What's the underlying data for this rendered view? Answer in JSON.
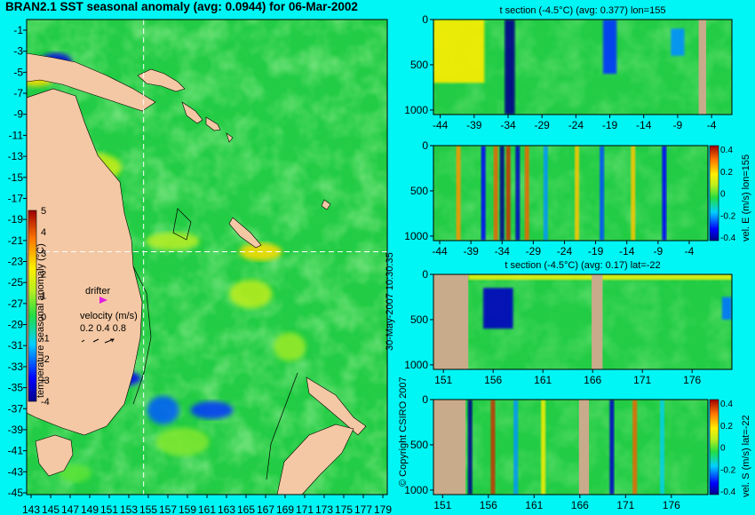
{
  "title": "BRAN2.1 SST seasonal anomaly (avg: 0.0944) for 06-Mar-2002",
  "copyright": "© Copyright CSIRO 2007",
  "generated": "30-May-2007 10:30:35",
  "colors": {
    "background": "#00f5f5",
    "land": "#f4c8a4",
    "section_land": "#c8ab8a",
    "crosshair": "#ffffff",
    "drifter_marker": "#e020e0",
    "ocean_mean": "#22cc44"
  },
  "chart_data": [
    {
      "id": "map",
      "type": "heatmap",
      "title": "BRAN2.1 SST seasonal anomaly (avg: 0.0944) for 06-Mar-2002",
      "x_ticks": [
        "143",
        "145",
        "147",
        "149",
        "151",
        "153",
        "155",
        "157",
        "159",
        "161",
        "163",
        "165",
        "167",
        "169",
        "171",
        "173",
        "175",
        "177",
        "179"
      ],
      "y_ticks": [
        "-1",
        "-3",
        "-5",
        "-7",
        "-9",
        "-11",
        "-13",
        "-15",
        "-17",
        "-19",
        "-21",
        "-23",
        "-25",
        "-27",
        "-29",
        "-31",
        "-33",
        "-35",
        "-37",
        "-39",
        "-41",
        "-43",
        "-45"
      ],
      "xlim": [
        143,
        180
      ],
      "ylim": [
        -45,
        0
      ],
      "crosshair": {
        "lon": 155,
        "lat": -22
      },
      "colorbar": {
        "label": "temperature seasonal anomaly (°C)",
        "ticks": [
          "5",
          "4",
          "3",
          "2",
          "1",
          "0",
          "-1",
          "-2",
          "-3",
          "-4"
        ],
        "range": [
          -4,
          5
        ]
      },
      "legend": {
        "drifter_label": "drifter",
        "velocity_label": "velocity (m/s)",
        "velocity_values": "0.2 0.4 0.8"
      },
      "highlights": [
        {
          "lon": 146,
          "lat": -4,
          "value": -3.2
        },
        {
          "lon": 144,
          "lat": -5,
          "value": 2.5
        },
        {
          "lon": 152,
          "lat": -34,
          "value": -3.0
        },
        {
          "lon": 157,
          "lat": -37,
          "value": -2.2
        },
        {
          "lon": 162,
          "lat": -37,
          "value": -2.5
        },
        {
          "lon": 159,
          "lat": -40,
          "value": 0.8
        },
        {
          "lon": 148,
          "lat": -43,
          "value": 0.5
        },
        {
          "lon": 166,
          "lat": -26,
          "value": 1.3
        },
        {
          "lon": 158,
          "lat": -21,
          "value": 1.2
        },
        {
          "lon": 170,
          "lat": -31,
          "value": 1.0
        },
        {
          "lon": 167,
          "lat": -22,
          "value": 2.5
        },
        {
          "lon": 150,
          "lat": -14,
          "value": 1.5
        }
      ]
    },
    {
      "id": "t-section-lon",
      "type": "heatmap",
      "title": "t section (-4.5°C) (avg: 0.377) lon=155",
      "x_ticks": [
        "-44",
        "-39",
        "-34",
        "-29",
        "-24",
        "-19",
        "-14",
        "-9",
        "-4"
      ],
      "y_ticks": [
        "0",
        "500",
        "1000"
      ],
      "xlim": [
        -45,
        -1
      ],
      "ylim": [
        1050,
        0
      ],
      "land_columns": [
        [
          -5.9,
          -4.8
        ]
      ],
      "features": [
        {
          "x0": -45,
          "x1": -37.5,
          "y0": 0,
          "y1": 700,
          "value": 2.3
        },
        {
          "x0": -34.5,
          "x1": -33,
          "y0": 0,
          "y1": 1050,
          "value": -4
        },
        {
          "x0": -20,
          "x1": -18,
          "y0": 0,
          "y1": 600,
          "value": -2.5
        },
        {
          "x0": -10,
          "x1": -8,
          "y0": 100,
          "y1": 400,
          "value": -1.8
        }
      ]
    },
    {
      "id": "vel-e-lon",
      "type": "heatmap",
      "title": "",
      "x_ticks": [
        "-44",
        "-39",
        "-34",
        "-29",
        "-24",
        "-19",
        "-14",
        "-9",
        "-4"
      ],
      "y_ticks": [
        "0",
        "500",
        "1000"
      ],
      "xlim": [
        -45,
        -1
      ],
      "ylim": [
        1050,
        0
      ],
      "colorbar": {
        "label": "vel. E (m/s) lon=155",
        "ticks": [
          "0.4",
          "0.2",
          "0",
          "-0.2",
          "-0.4"
        ],
        "range": [
          -0.4,
          0.4
        ]
      },
      "stripes": [
        {
          "x": -41,
          "value": 0.25
        },
        {
          "x": -37,
          "value": -0.3
        },
        {
          "x": -35,
          "value": 0.3
        },
        {
          "x": -34,
          "value": -0.4
        },
        {
          "x": -33,
          "value": 0.35
        },
        {
          "x": -31.5,
          "value": -0.35
        },
        {
          "x": -30,
          "value": 0.3
        },
        {
          "x": -27,
          "value": -0.2
        },
        {
          "x": -22,
          "value": 0.2
        },
        {
          "x": -18,
          "value": -0.25
        },
        {
          "x": -13,
          "value": 0.2
        },
        {
          "x": -8,
          "value": -0.3
        }
      ]
    },
    {
      "id": "t-section-lat",
      "type": "heatmap",
      "title": "t section (-4.5°C) (avg: 0.17) lat=-22",
      "x_ticks": [
        "151",
        "156",
        "161",
        "166",
        "171",
        "176"
      ],
      "y_ticks": [
        "0",
        "500",
        "1000"
      ],
      "xlim": [
        150,
        180
      ],
      "ylim": [
        1050,
        0
      ],
      "land_columns": [
        [
          150,
          153.5
        ],
        [
          165.9,
          167
        ]
      ],
      "features": [
        {
          "x0": 155,
          "x1": 158,
          "y0": 150,
          "y1": 600,
          "value": -3.5
        },
        {
          "x0": 153.5,
          "x1": 180,
          "y0": 0,
          "y1": 60,
          "value": 2.0
        },
        {
          "x0": 179,
          "x1": 180,
          "y0": 250,
          "y1": 500,
          "value": -2.0
        }
      ]
    },
    {
      "id": "vel-s-lat",
      "type": "heatmap",
      "title": "",
      "x_ticks": [
        "151",
        "156",
        "161",
        "166",
        "171",
        "176"
      ],
      "y_ticks": [
        "0",
        "500",
        "1000"
      ],
      "xlim": [
        150,
        180
      ],
      "ylim": [
        1050,
        0
      ],
      "land_columns": [
        [
          150,
          153.5
        ],
        [
          165.9,
          167
        ]
      ],
      "colorbar": {
        "label": "vel. S (m/s) lat=-22",
        "ticks": [
          "0.4",
          "0.2",
          "0",
          "-0.2",
          "-0.4"
        ],
        "range": [
          -0.4,
          0.4
        ]
      },
      "stripes": [
        {
          "x": 154,
          "value": -0.4
        },
        {
          "x": 156.5,
          "value": 0.35
        },
        {
          "x": 159,
          "value": -0.2
        },
        {
          "x": 162,
          "value": 0.15
        },
        {
          "x": 169.5,
          "value": -0.35
        },
        {
          "x": 172,
          "value": 0.3
        },
        {
          "x": 175,
          "value": -0.15
        }
      ]
    }
  ]
}
